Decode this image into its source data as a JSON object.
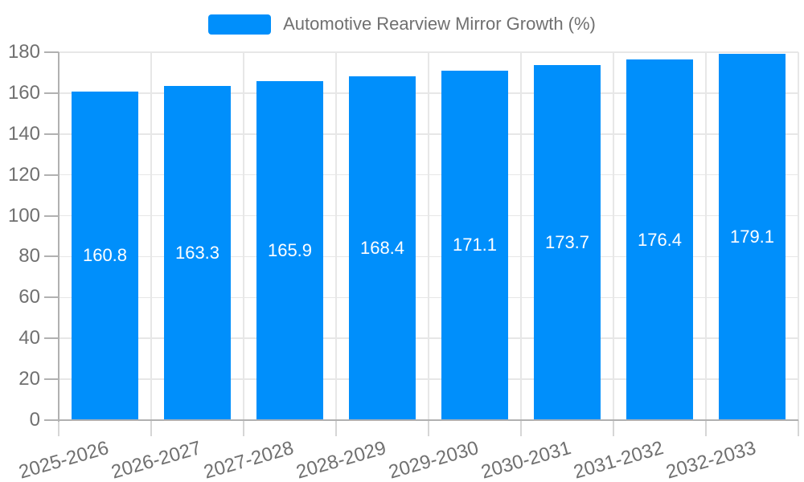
{
  "chart_data": {
    "type": "bar",
    "title": "",
    "xlabel": "",
    "ylabel": "",
    "legend_position": "top",
    "grid": true,
    "categories": [
      "2025-2026",
      "2026-2027",
      "2027-2028",
      "2028-2029",
      "2029-2030",
      "2030-2031",
      "2031-2032",
      "2032-2033"
    ],
    "series": [
      {
        "name": "Automotive Rearview Mirror Growth (%)",
        "values": [
          160.8,
          163.3,
          165.9,
          168.4,
          171.1,
          173.7,
          176.4,
          179.1
        ]
      }
    ],
    "value_labels": [
      "160.8",
      "163.3",
      "165.9",
      "168.4",
      "171.1",
      "173.7",
      "176.4",
      "179.1"
    ],
    "ylim": [
      0,
      180
    ],
    "ytick_labels": [
      "0",
      "20",
      "40",
      "60",
      "80",
      "100",
      "120",
      "140",
      "160",
      "180"
    ],
    "ytick_values": [
      0,
      20,
      40,
      60,
      80,
      100,
      120,
      140,
      160,
      180
    ],
    "colors": {
      "bar_fill": "#008FFB",
      "bar_value_label": "#ffffff",
      "axis_label_text": "#707070",
      "legend_text": "#707070",
      "grid_line": "#e7e7e7",
      "axis_line": "#b1b1b1",
      "tick_mark": "#b1b1b1",
      "background": "#ffffff"
    }
  }
}
